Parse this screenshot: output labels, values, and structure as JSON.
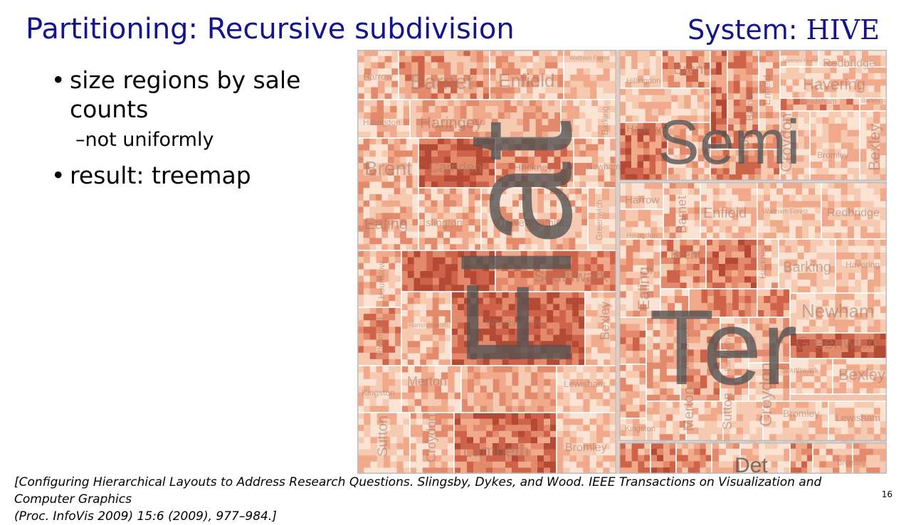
{
  "slide": {
    "title": "Partitioning: Recursive subdivision",
    "system_prefix": "System: ",
    "system_name": "HIVE",
    "bullets": {
      "b1": "size regions by sale counts",
      "b1_sub": "–not uniformly",
      "b2": "result: treemap"
    },
    "citation_line1": "[Configuring Hierarchical Layouts to Address Research Questions. Slingsby, Dykes, and Wood.  IEEE Transactions on Visualization and Computer Graphics",
    "citation_line2": "(Proc. InfoVis 2009) 15:6 (2009), 977–984.]",
    "page_number": "16"
  },
  "treemap": {
    "palette": [
      "#fbe3d4",
      "#f6c9b1",
      "#f0a98a",
      "#e38a6c",
      "#cf634a",
      "#b44a35"
    ],
    "types": {
      "flat": "Flat",
      "semi": "Semi",
      "ter": "Ter",
      "det": "Det"
    },
    "flat_labels": {
      "harrow": "Harrow",
      "barnet": "Barnet",
      "enfield": "Enfield",
      "waltham": "Waltham Forest",
      "hillingdon": "Hillingdon",
      "haringey": "Haringey",
      "barking": "Barking",
      "brent": "Brent",
      "camden": "Camden",
      "hackney": "Hackney",
      "newham": "Newham",
      "ealing": "Ealing",
      "islington": "Islington",
      "towerhamlets": "Tower Hamlets",
      "greenwich": "Greenwich",
      "hounslow": "Hounslow",
      "southwark": "Southwark",
      "richmond": "Richmond",
      "hammersmith": "Hammersmith",
      "wandsworth": "Wandsworth",
      "bexley": "Bexley",
      "kingston": "Kingston",
      "merton": "Merton",
      "lewisham": "Lewisham",
      "sutton": "Sutton",
      "croydon": "Croydon",
      "lambeth": "Lambeth",
      "bromley": "Bromley"
    },
    "semi_labels": {
      "hillingdon": "Hillingdon",
      "brent": "Brent",
      "barnet": "Barnet",
      "enfield": "Enfield",
      "waltham": "Waltham Forest",
      "redbridge": "Redbridge",
      "havering": "Havering",
      "lewisham": "Lewisham",
      "barking": "Barking",
      "harrow": "Harrow",
      "sutton": "Sutton",
      "croydon": "Croydon",
      "bromley": "Bromley",
      "bexley": "Bexley"
    },
    "ter_labels": {
      "harrow": "Harrow",
      "barnet": "Barnet",
      "enfield": "Enfield",
      "waltham": "Waltham Forest",
      "redbridge": "Redbridge",
      "hillingdon": "Hillingdon",
      "brent": "Brent",
      "hackney": "Hackney",
      "barking": "Barking",
      "havering": "Havering",
      "ealing": "Ealing",
      "newham": "Newham",
      "greenwich": "Greenwich",
      "wandsworth": "Wandsworth",
      "lambeth": "Lambeth",
      "southwark": "Southwark",
      "bexley": "Bexley",
      "merton": "Merton",
      "sutton": "Sutton",
      "croydon": "Croydon",
      "bromley": "Bromley",
      "lewisham": "Lewisham",
      "kingston": "Kingston"
    },
    "det_labels": {
      "bromley": "Bromley"
    }
  }
}
